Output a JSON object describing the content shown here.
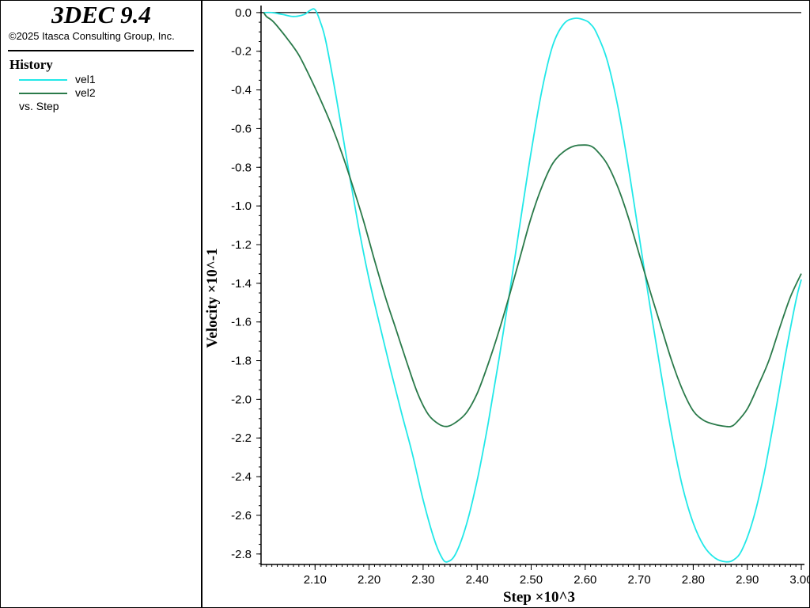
{
  "app": {
    "title": "3DEC 9.4",
    "copyright": "©2025 Itasca Consulting Group, Inc."
  },
  "legend": {
    "heading": "History",
    "entries": [
      {
        "label": "vel1",
        "color": "#22e8e8"
      },
      {
        "label": "vel2",
        "color": "#2a7a4a"
      }
    ],
    "versus": "vs. Step"
  },
  "chart_data": {
    "type": "line",
    "xlabel": "Step ×10^3",
    "ylabel": "Velocity ×10^-1",
    "xlim": [
      2.0,
      3.0
    ],
    "ylim": [
      -2.85,
      0.02
    ],
    "x_ticks": [
      "2.10",
      "2.20",
      "2.30",
      "2.40",
      "2.50",
      "2.60",
      "2.70",
      "2.80",
      "2.90",
      "3.00"
    ],
    "y_ticks": [
      "0.0",
      "-0.2",
      "-0.4",
      "-0.6",
      "-0.8",
      "-1.0",
      "-1.2",
      "-1.4",
      "-1.6",
      "-1.8",
      "-2.0",
      "-2.2",
      "-2.4",
      "-2.6",
      "-2.8"
    ],
    "series": [
      {
        "name": "vel1",
        "color": "#22e8e8",
        "x": [
          2.005,
          2.02,
          2.04,
          2.06,
          2.08,
          2.09,
          2.1,
          2.11,
          2.12,
          2.14,
          2.16,
          2.18,
          2.2,
          2.22,
          2.24,
          2.26,
          2.28,
          2.3,
          2.32,
          2.335,
          2.345,
          2.36,
          2.38,
          2.4,
          2.42,
          2.44,
          2.46,
          2.48,
          2.5,
          2.52,
          2.54,
          2.56,
          2.58,
          2.6,
          2.61,
          2.62,
          2.64,
          2.66,
          2.68,
          2.7,
          2.72,
          2.74,
          2.76,
          2.78,
          2.8,
          2.82,
          2.84,
          2.86,
          2.875,
          2.89,
          2.91,
          2.93,
          2.95,
          2.97,
          2.99,
          3.0
        ],
        "y": [
          0.0,
          0.0,
          -0.01,
          -0.02,
          -0.01,
          0.01,
          0.015,
          -0.05,
          -0.15,
          -0.45,
          -0.78,
          -1.1,
          -1.38,
          -1.62,
          -1.85,
          -2.07,
          -2.28,
          -2.52,
          -2.72,
          -2.82,
          -2.84,
          -2.8,
          -2.65,
          -2.42,
          -2.13,
          -1.8,
          -1.45,
          -1.08,
          -0.72,
          -0.4,
          -0.17,
          -0.06,
          -0.03,
          -0.04,
          -0.06,
          -0.1,
          -0.24,
          -0.48,
          -0.8,
          -1.16,
          -1.52,
          -1.86,
          -2.18,
          -2.45,
          -2.64,
          -2.76,
          -2.82,
          -2.84,
          -2.83,
          -2.78,
          -2.63,
          -2.4,
          -2.1,
          -1.78,
          -1.49,
          -1.38
        ]
      },
      {
        "name": "vel2",
        "color": "#2a7a4a",
        "x": [
          2.005,
          2.01,
          2.02,
          2.03,
          2.05,
          2.07,
          2.09,
          2.11,
          2.13,
          2.15,
          2.17,
          2.19,
          2.21,
          2.23,
          2.25,
          2.27,
          2.29,
          2.31,
          2.33,
          2.345,
          2.36,
          2.38,
          2.4,
          2.42,
          2.44,
          2.46,
          2.48,
          2.5,
          2.52,
          2.54,
          2.56,
          2.58,
          2.6,
          2.61,
          2.62,
          2.64,
          2.66,
          2.68,
          2.7,
          2.72,
          2.74,
          2.76,
          2.78,
          2.8,
          2.82,
          2.84,
          2.86,
          2.87,
          2.88,
          2.9,
          2.92,
          2.94,
          2.96,
          2.98,
          3.0
        ],
        "y": [
          0.0,
          -0.02,
          -0.04,
          -0.07,
          -0.14,
          -0.22,
          -0.33,
          -0.45,
          -0.58,
          -0.73,
          -0.9,
          -1.08,
          -1.28,
          -1.47,
          -1.64,
          -1.81,
          -1.97,
          -2.08,
          -2.13,
          -2.14,
          -2.12,
          -2.07,
          -1.97,
          -1.82,
          -1.65,
          -1.46,
          -1.26,
          -1.06,
          -0.9,
          -0.78,
          -0.72,
          -0.69,
          -0.685,
          -0.69,
          -0.71,
          -0.78,
          -0.9,
          -1.06,
          -1.25,
          -1.44,
          -1.62,
          -1.8,
          -1.95,
          -2.06,
          -2.11,
          -2.13,
          -2.14,
          -2.14,
          -2.12,
          -2.05,
          -1.93,
          -1.8,
          -1.63,
          -1.47,
          -1.35
        ]
      }
    ]
  }
}
